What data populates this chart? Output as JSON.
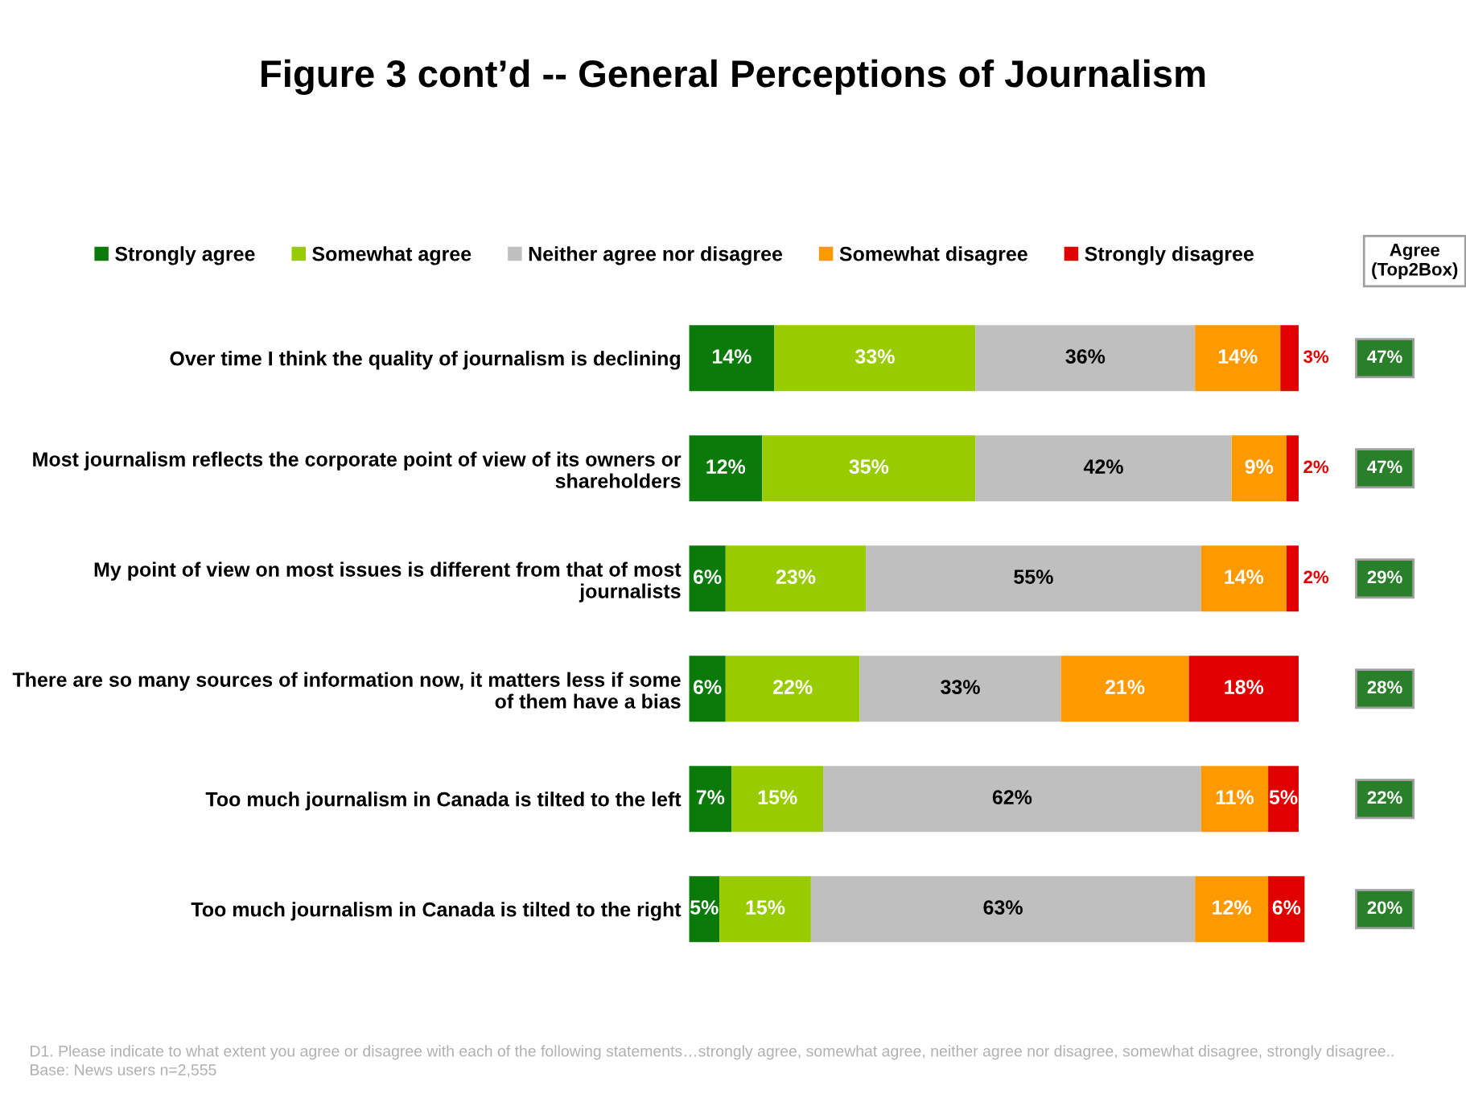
{
  "chart_data": {
    "type": "bar",
    "orientation": "horizontal",
    "stacked": true,
    "title": "Figure 3 cont’d -- General Perceptions of Journalism",
    "categories": [
      "Over time I think the quality of journalism is declining",
      "Most journalism reflects the corporate point of view of its owners or shareholders",
      "My point of view on most issues is different from that of most journalists",
      "There are so many sources of information now, it matters less if some of them have a bias",
      "Too much journalism in Canada is tilted to the left",
      "Too much journalism in Canada is tilted to the right"
    ],
    "series": [
      {
        "name": "Strongly agree",
        "color": "#0b7a0b",
        "values": [
          14,
          12,
          6,
          6,
          7,
          5
        ],
        "value_labels": [
          "14%",
          "12%",
          "6%",
          "6%",
          "7%",
          "5%"
        ]
      },
      {
        "name": "Somewhat agree",
        "color": "#99cc00",
        "values": [
          33,
          35,
          23,
          22,
          15,
          15
        ],
        "value_labels": [
          "33%",
          "35%",
          "23%",
          "22%",
          "15%",
          "15%"
        ]
      },
      {
        "name": "Neither agree nor disagree",
        "color": "#bfbfbf",
        "values": [
          36,
          42,
          55,
          33,
          62,
          63
        ],
        "value_labels": [
          "36%",
          "42%",
          "55%",
          "33%",
          "62%",
          "63%"
        ]
      },
      {
        "name": "Somewhat disagree",
        "color": "#ff9900",
        "values": [
          14,
          9,
          14,
          21,
          11,
          12
        ],
        "value_labels": [
          "14%",
          "9%",
          "14%",
          "21%",
          "11%",
          "12%"
        ]
      },
      {
        "name": "Strongly disagree",
        "color": "#e00000",
        "values": [
          3,
          2,
          2,
          18,
          5,
          6
        ],
        "value_labels": [
          "3%",
          "2%",
          "2%",
          "18%",
          "5%",
          "6%"
        ]
      }
    ],
    "xlim": [
      0,
      101
    ],
    "tick_labels": "y",
    "legend": "top",
    "grid": false,
    "annotations": [
      "D1. Please indicate to what extent you agree or disagree with each of the following statements…strongly agree, somewhat agree, neither agree nor disagree, somewhat disagree, strongly disagree..",
      "Base: News users n=2,555",
      "Agree (Top2Box)",
      "47%",
      "47%",
      "29%",
      "28%",
      "22%",
      "20%"
    ]
  }
}
